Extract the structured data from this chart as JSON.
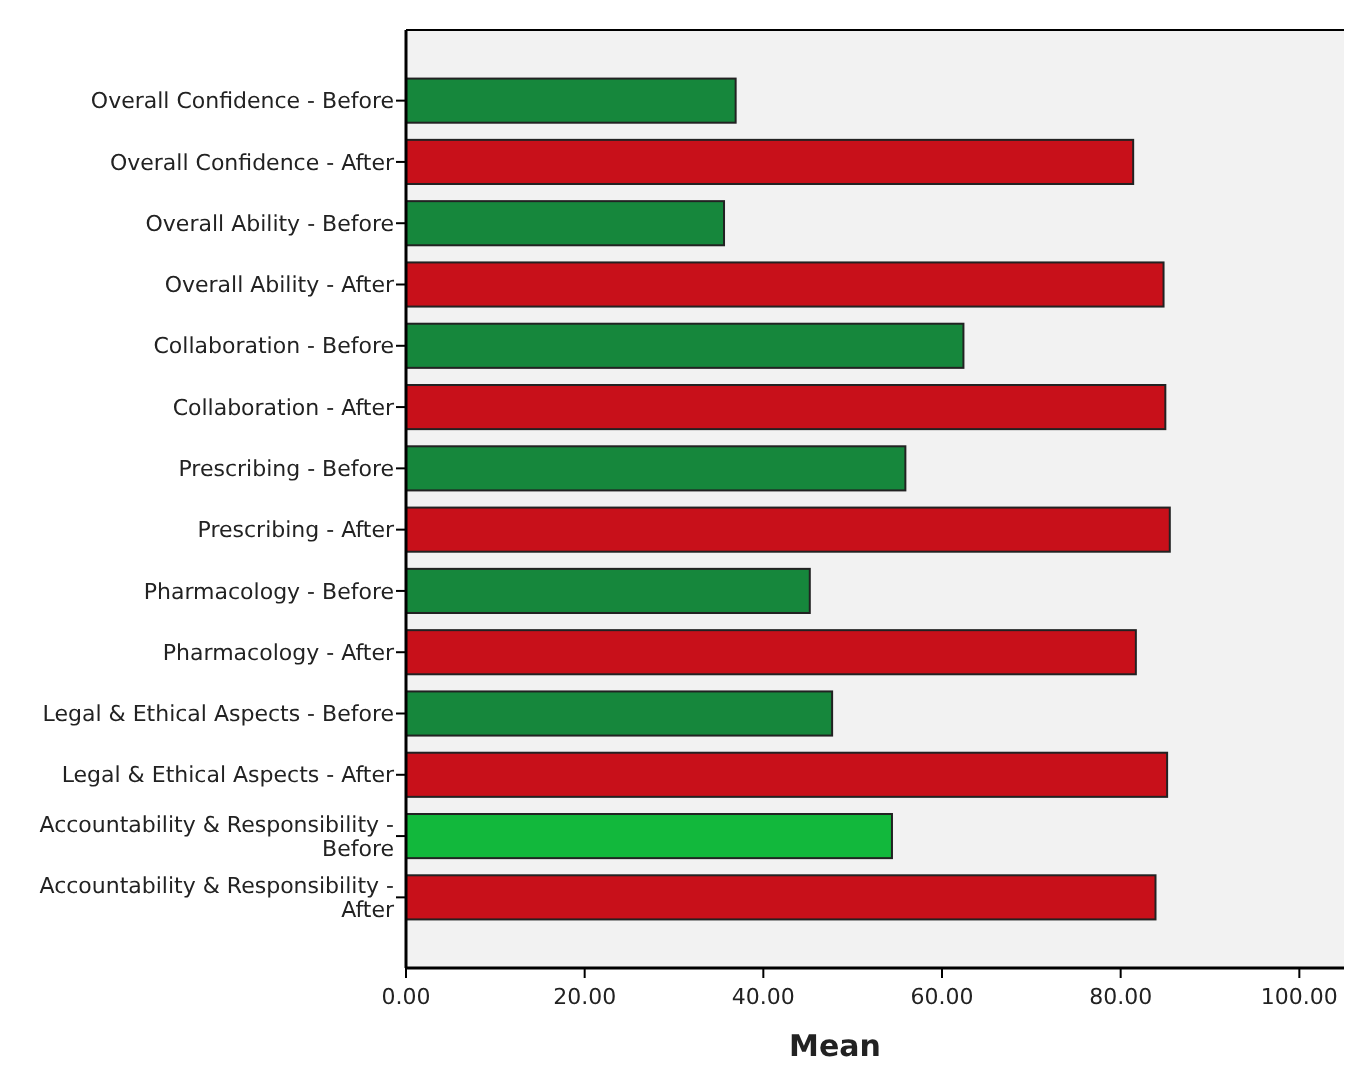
{
  "chart_data": {
    "type": "bar",
    "orientation": "horizontal",
    "xlabel": "Mean",
    "categories": [
      "Overall Confidence - Before",
      "Overall Confidence - After",
      "Overall Ability - Before",
      "Overall Ability - After",
      "Collaboration - Before",
      "Collaboration - After",
      "Prescribing - Before",
      "Prescribing - After",
      "Pharmacology - Before",
      "Pharmacology - After",
      "Legal & Ethical Aspects - Before",
      "Legal & Ethical Aspects - After",
      "Accountability & Responsibility - Before",
      "Accountability & Responsibility - After"
    ],
    "values": [
      36.9,
      81.4,
      35.6,
      84.8,
      62.4,
      85.0,
      55.9,
      85.5,
      45.2,
      81.7,
      47.7,
      85.2,
      54.4,
      83.9
    ],
    "colors": [
      "#16873c",
      "#c8101a",
      "#16873c",
      "#c8101a",
      "#16873c",
      "#c8101a",
      "#16873c",
      "#c8101a",
      "#16873c",
      "#c8101a",
      "#16873c",
      "#c8101a",
      "#12b83c",
      "#c8101a"
    ],
    "xlim": [
      0,
      105
    ],
    "xticks": [
      {
        "value": 0,
        "label": "0.00"
      },
      {
        "value": 20,
        "label": "20.00"
      },
      {
        "value": 40,
        "label": "40.00"
      },
      {
        "value": 60,
        "label": "60.00"
      },
      {
        "value": 80,
        "label": "80.00"
      },
      {
        "value": 100,
        "label": "100.00"
      }
    ]
  }
}
